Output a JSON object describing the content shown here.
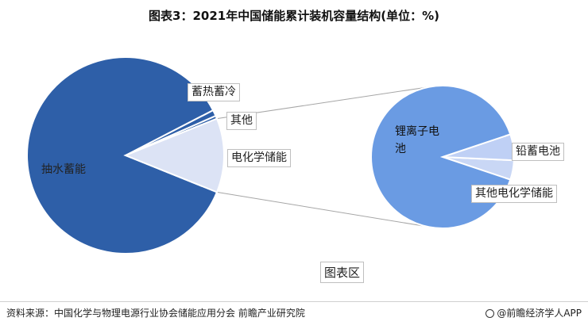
{
  "title": "图表3：2021年中国储能累计装机容量结构(单位：%)",
  "chart_data": [
    {
      "type": "pie",
      "title": "",
      "slices": [
        {
          "name": "抽水蓄能",
          "value": 86.3,
          "color": "#2e5fa8"
        },
        {
          "name": "蓄热蓄冷",
          "value": 1.0,
          "color": "#2e5fa8"
        },
        {
          "name": "其他",
          "value": 0.5,
          "color": "#2e5fa8"
        },
        {
          "name": "电化学储能",
          "value": 12.2,
          "color": "#dce3f5"
        }
      ]
    },
    {
      "type": "pie",
      "title": "",
      "slices": [
        {
          "name": "锂离子电池",
          "value": 89.7,
          "color": "#6a9be3"
        },
        {
          "name": "铅蓄电池",
          "value": 5.9,
          "color": "#bfd0f5"
        },
        {
          "name": "其他电化学储能",
          "value": 4.4,
          "color": "#c9d7f5"
        }
      ]
    }
  ],
  "legend_label": "图表区",
  "source": "资料来源：中国化学与物理电源行业协会储能应用分会 前瞻产业研究院",
  "brand": "@前瞻经济学人APP"
}
